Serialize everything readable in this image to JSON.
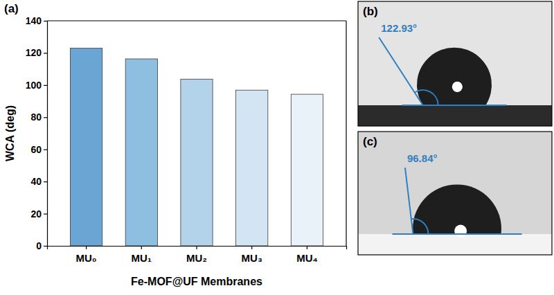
{
  "chart_data": {
    "type": "bar",
    "panel_label": "(a)",
    "x_label": "Fe-MOF@UF Membranes",
    "y_label": "WCA (deg)",
    "categories": [
      "MU₀",
      "MU₁",
      "MU₂",
      "MU₃",
      "MU₄"
    ],
    "values": [
      122.93,
      116.3,
      103.7,
      96.84,
      94.3
    ],
    "colors": [
      "#6aa5d3",
      "#8ebfe0",
      "#b2d3ea",
      "#d3e4f2",
      "#e9f1f9"
    ],
    "ylim": [
      0,
      140
    ],
    "yticks": [
      0,
      20,
      40,
      60,
      80,
      100,
      120,
      140
    ],
    "grid": false,
    "data_labels": false
  },
  "panels": [
    {
      "letter": "(b)",
      "angle": 122.93,
      "angle_label": "122.93°"
    },
    {
      "letter": "(c)",
      "angle": 96.84,
      "angle_label": "96.84°"
    }
  ]
}
